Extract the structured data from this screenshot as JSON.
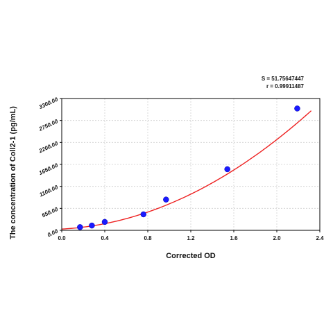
{
  "stats": {
    "s_label": "S = 51.75647447",
    "r_label": "r = 0.99911487"
  },
  "chart_data": {
    "type": "scatter",
    "xlabel": "Corrected OD",
    "ylabel": "The concentration of Coll2-1 (pg/mL)",
    "xlim": [
      0,
      2.4
    ],
    "ylim": [
      0,
      3300
    ],
    "xticks": [
      0.0,
      0.4,
      0.8,
      1.2,
      1.6,
      2.0,
      2.4
    ],
    "xtick_labels": [
      "0.0",
      "0.4",
      "0.8",
      "1.2",
      "1.6",
      "2.0",
      "2.4"
    ],
    "yticks": [
      0,
      550,
      1100,
      1650,
      2200,
      2750,
      3300
    ],
    "ytick_labels": [
      "0.00",
      "550.00",
      "1100.00",
      "1650.00",
      "2200.00",
      "2750.00",
      "3300.00"
    ],
    "grid": true,
    "series": [
      {
        "points": [
          {
            "x": 0.17,
            "y": 80
          },
          {
            "x": 0.28,
            "y": 120
          },
          {
            "x": 0.4,
            "y": 210
          },
          {
            "x": 0.76,
            "y": 400
          },
          {
            "x": 0.97,
            "y": 770
          },
          {
            "x": 1.54,
            "y": 1530
          },
          {
            "x": 2.19,
            "y": 3050
          }
        ],
        "color": "#1a1aff"
      }
    ],
    "fit_curve": {
      "coefficients": [
        32,
        140,
        490
      ],
      "x_range": [
        0,
        2.32
      ],
      "color": "#ee2222"
    }
  }
}
